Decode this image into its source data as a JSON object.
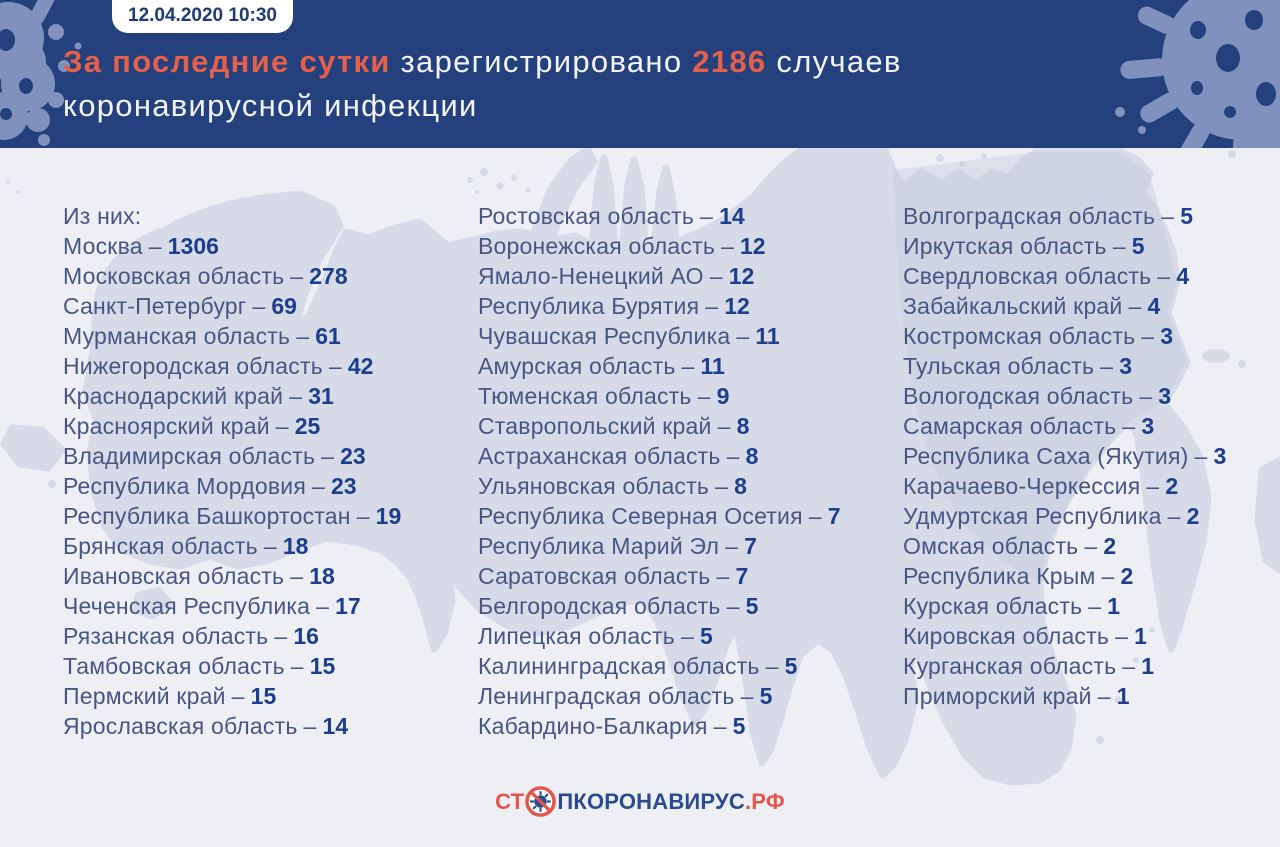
{
  "header": {
    "badge": "12.04.2020 10:30",
    "headline": {
      "emphasis": "За последние сутки",
      "middle": "зарегистрировано",
      "count": "2186",
      "after_count": "случаев",
      "line2": "коронавирусной инфекции"
    }
  },
  "list": {
    "separator": "–",
    "columns": [
      {
        "items": [
          {
            "label": "Из них:"
          },
          {
            "name": "Москва",
            "value": "1306"
          },
          {
            "name": "Московская область",
            "value": "278"
          },
          {
            "name": "Санкт-Петербург",
            "value": "69"
          },
          {
            "name": "Мурманская область",
            "value": "61"
          },
          {
            "name": "Нижегородская область",
            "value": "42"
          },
          {
            "name": "Краснодарский край",
            "value": "31"
          },
          {
            "name": "Красноярский край",
            "value": "25"
          },
          {
            "name": "Владимирская область",
            "value": "23"
          },
          {
            "name": "Республика Мордовия",
            "value": "23"
          },
          {
            "name": "Республика Башкортостан",
            "value": "19"
          },
          {
            "name": "Брянская область",
            "value": "18"
          },
          {
            "name": "Ивановская область",
            "value": "18"
          },
          {
            "name": "Чеченская Республика",
            "value": "17"
          },
          {
            "name": "Рязанская область",
            "value": "16"
          },
          {
            "name": "Тамбовская область",
            "value": "15"
          },
          {
            "name": "Пермский край",
            "value": "15"
          },
          {
            "name": "Ярославская область",
            "value": "14"
          }
        ]
      },
      {
        "items": [
          {
            "name": "Ростовская область",
            "value": "14"
          },
          {
            "name": "Воронежская область",
            "value": "12"
          },
          {
            "name": "Ямало-Ненецкий АО",
            "value": "12"
          },
          {
            "name": "Республика Бурятия",
            "value": "12"
          },
          {
            "name": "Чувашская Республика",
            "value": "11"
          },
          {
            "name": "Амурская область",
            "value": "11"
          },
          {
            "name": "Тюменская область",
            "value": "9"
          },
          {
            "name": "Ставропольский край",
            "value": "8"
          },
          {
            "name": "Астраханская область",
            "value": "8"
          },
          {
            "name": "Ульяновская область",
            "value": "8"
          },
          {
            "name": "Республика Северная Осетия",
            "value": "7"
          },
          {
            "name": "Республика Марий Эл",
            "value": "7"
          },
          {
            "name": "Саратовская область",
            "value": "7"
          },
          {
            "name": "Белгородская область",
            "value": "5"
          },
          {
            "name": "Липецкая область",
            "value": "5"
          },
          {
            "name": "Калининградская область",
            "value": "5"
          },
          {
            "name": "Ленинградская область",
            "value": "5"
          },
          {
            "name": "Кабардино-Балкария",
            "value": "5"
          }
        ]
      },
      {
        "items": [
          {
            "name": "Волгоградская область",
            "value": "5"
          },
          {
            "name": "Иркутская область",
            "value": "5"
          },
          {
            "name": "Свердловская область",
            "value": "4"
          },
          {
            "name": "Забайкальский край",
            "value": "4"
          },
          {
            "name": "Костромская область",
            "value": "3"
          },
          {
            "name": "Тульская область",
            "value": "3"
          },
          {
            "name": "Вологодская область",
            "value": "3"
          },
          {
            "name": "Самарская область",
            "value": "3"
          },
          {
            "name": "Республика Саха (Якутия)",
            "value": "3"
          },
          {
            "name": "Карачаево-Черкессия",
            "value": "2"
          },
          {
            "name": "Удмуртская Республика",
            "value": "2"
          },
          {
            "name": "Омская область",
            "value": "2"
          },
          {
            "name": "Республика Крым",
            "value": "2"
          },
          {
            "name": "Курская область",
            "value": "1"
          },
          {
            "name": "Кировская область",
            "value": "1"
          },
          {
            "name": "Курганская область",
            "value": "1"
          },
          {
            "name": "Приморский край",
            "value": "1"
          }
        ]
      }
    ]
  },
  "logo": {
    "part1": "СТ",
    "icon": "no-virus-icon",
    "part2": "ПКОРОНАВИРУС",
    "part3": ".РФ"
  },
  "colors": {
    "header_bg": "#24407d",
    "accent_orange": "#e4604a",
    "headline_white": "#f2f4fa",
    "region_name": "#475683",
    "count_navy": "#1c3e8c",
    "body_bg": "#edeff4",
    "map_fill": "#d7dbe7",
    "map_fill_dark": "#c3cbdf",
    "splat_fill": "#8191bd",
    "logo_blue": "#2c4b8f",
    "logo_orange": "#e4564a",
    "badge_bg": "#ffffff",
    "badge_text": "#1e3a78"
  },
  "chart_data": {
    "type": "table",
    "title": "За последние сутки зарегистрировано 2186 случаев коронавирусной инфекции",
    "timestamp": "12.04.2020 10:30",
    "total_new_cases": 2186,
    "categories": [
      "Москва",
      "Московская область",
      "Санкт-Петербург",
      "Мурманская область",
      "Нижегородская область",
      "Краснодарский край",
      "Красноярский край",
      "Владимирская область",
      "Республика Мордовия",
      "Республика Башкортостан",
      "Брянская область",
      "Ивановская область",
      "Чеченская Республика",
      "Рязанская область",
      "Тамбовская область",
      "Пермский край",
      "Ярославская область",
      "Ростовская область",
      "Воронежская область",
      "Ямало-Ненецкий АО",
      "Республика Бурятия",
      "Чувашская Республика",
      "Амурская область",
      "Тюменская область",
      "Ставропольский край",
      "Астраханская область",
      "Ульяновская область",
      "Республика Северная Осетия",
      "Республика Марий Эл",
      "Саратовская область",
      "Белгородская область",
      "Липецкая область",
      "Калининградская область",
      "Ленинградская область",
      "Кабардино-Балкария",
      "Волгоградская область",
      "Иркутская область",
      "Свердловская область",
      "Забайкальский край",
      "Костромская область",
      "Тульская область",
      "Вологодская область",
      "Самарская область",
      "Республика Саха (Якутия)",
      "Карачаево-Черкессия",
      "Удмуртская Республика",
      "Омская область",
      "Республика Крым",
      "Курская область",
      "Кировская область",
      "Курганская область",
      "Приморский край"
    ],
    "values": [
      1306,
      278,
      69,
      61,
      42,
      31,
      25,
      23,
      23,
      19,
      18,
      18,
      17,
      16,
      15,
      15,
      14,
      14,
      12,
      12,
      12,
      11,
      11,
      9,
      8,
      8,
      8,
      7,
      7,
      7,
      5,
      5,
      5,
      5,
      5,
      5,
      5,
      4,
      4,
      3,
      3,
      3,
      3,
      3,
      2,
      2,
      2,
      2,
      1,
      1,
      1,
      1
    ]
  }
}
